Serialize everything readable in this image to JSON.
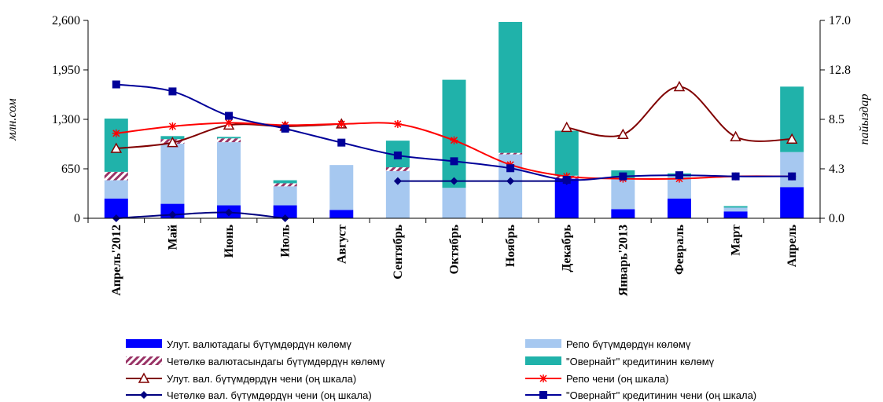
{
  "chart_data": {
    "type": "bar",
    "categories": [
      "Апрель'2012",
      "Май",
      "Июнь",
      "Июль",
      "Август",
      "Сентябрь",
      "Октябрь",
      "Ноябрь",
      "Декабрь",
      "Январь'2013",
      "Февраль",
      "Март",
      "Апрель"
    ],
    "ylabel": "млн.сом",
    "y2label": "пайыздар",
    "ylim": [
      0,
      2600
    ],
    "y2lim": [
      0,
      17.0
    ],
    "yticks": [
      "0",
      "650",
      "1,300",
      "1,950",
      "2,600"
    ],
    "y2ticks": [
      "0.0",
      "4.3",
      "8.5",
      "12.8",
      "17.0"
    ],
    "bar_series": [
      {
        "name": "Улут. валютадагы бүтүмдөрдүн көлөмү",
        "color": "#0000ff",
        "values": [
          260,
          190,
          170,
          170,
          110,
          0,
          0,
          0,
          520,
          120,
          260,
          90,
          410
        ]
      },
      {
        "name": "Репо бүтүмдөрдүн көлөмү",
        "color": "#a6c8f0",
        "values": [
          240,
          790,
          830,
          250,
          590,
          620,
          400,
          840,
          0,
          400,
          290,
          50,
          460
        ]
      },
      {
        "name": "Четөлкө валютасындагы бүтүмдөрдүн көлөмү",
        "color": "#993366",
        "pattern": true,
        "values": [
          110,
          60,
          50,
          40,
          0,
          50,
          0,
          20,
          40,
          0,
          0,
          0,
          0
        ]
      },
      {
        "name": "\"Овернайт\" кредитинин көлөмү",
        "color": "#20b2aa",
        "values": [
          700,
          40,
          20,
          40,
          0,
          350,
          1420,
          1720,
          590,
          110,
          40,
          20,
          860
        ]
      }
    ],
    "line_series": [
      {
        "name": "Улут. вал. бүтүмдөрдүн чени (оң шкала)",
        "color": "#800000",
        "marker": "triangle",
        "values": [
          6.0,
          6.5,
          8.0,
          7.9,
          8.1,
          null,
          null,
          null,
          7.8,
          7.2,
          11.3,
          7.0,
          6.8
        ]
      },
      {
        "name": "Репо чени (оң шкала)",
        "color": "#ff0000",
        "marker": "asterisk",
        "values": [
          7.3,
          7.9,
          8.2,
          8.0,
          8.1,
          8.1,
          6.7,
          4.6,
          3.6,
          3.4,
          3.4,
          3.6,
          3.6
        ]
      },
      {
        "name": "Четөлкө вал. бүтүмдөрдүн чени (оң шкала)",
        "color": "#000080",
        "marker": "diamond",
        "values": [
          0.0,
          0.3,
          0.5,
          0.0,
          null,
          3.2,
          3.2,
          3.2,
          3.2,
          null,
          null,
          null,
          null
        ]
      },
      {
        "name": "\"Овернайт\" кредитинин чени (оң шкала)",
        "color": "#000099",
        "marker": "square",
        "values": [
          11.5,
          10.9,
          8.8,
          7.7,
          6.5,
          5.4,
          4.9,
          4.3,
          3.3,
          3.6,
          3.7,
          3.6,
          3.6
        ]
      }
    ],
    "legend_position": "bottom",
    "grid": false
  }
}
